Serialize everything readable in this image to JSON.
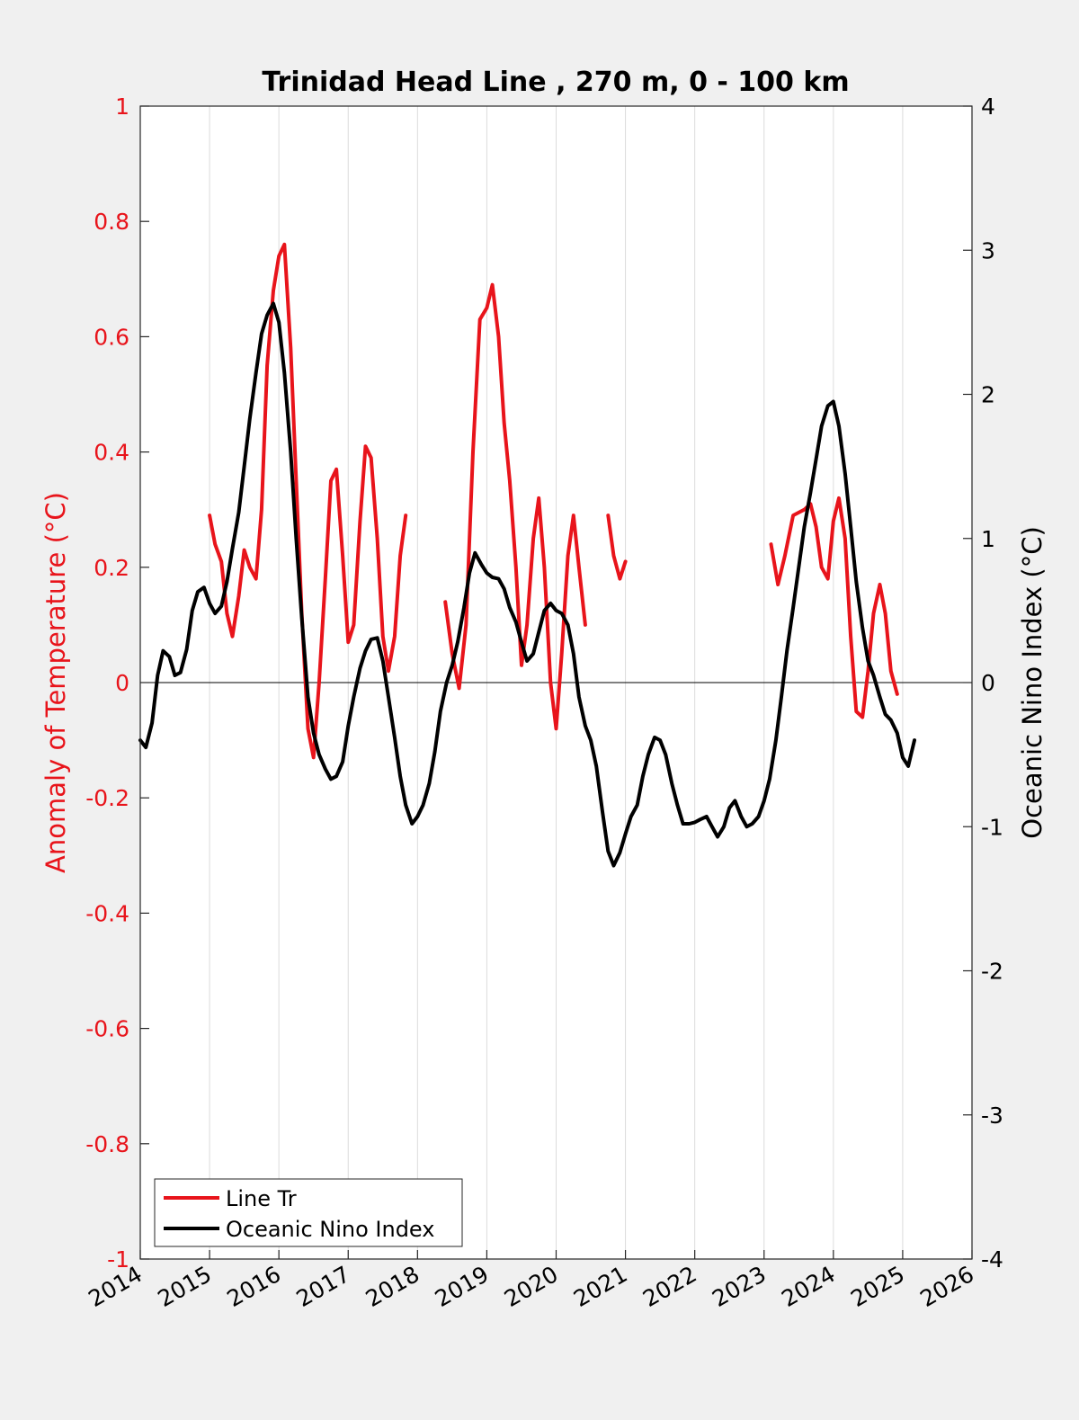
{
  "chart_data": {
    "type": "line",
    "title": "Trinidad Head Line , 270 m, 0 - 100 km",
    "xlabel": "",
    "ylabel_left": "Anomaly of Temperature (°C)",
    "ylabel_right": "Oceanic Nino Index (°C)",
    "xlim": [
      2014,
      2026
    ],
    "ylim_left": [
      -1,
      1
    ],
    "ylim_right": [
      -4,
      4
    ],
    "x_ticks": [
      "2014",
      "2015",
      "2016",
      "2017",
      "2018",
      "2019",
      "2020",
      "2021",
      "2022",
      "2023",
      "2024",
      "2025",
      "2026"
    ],
    "y_left_ticks": [
      "-1",
      "-0.8",
      "-0.6",
      "-0.4",
      "-0.2",
      "0",
      "0.2",
      "0.4",
      "0.6",
      "0.8",
      "1"
    ],
    "y_right_ticks": [
      "-4",
      "-3",
      "-2",
      "-1",
      "0",
      "1",
      "2",
      "3",
      "4"
    ],
    "grid_x": true,
    "legend_position": "bottom-left",
    "colors": {
      "left_axis": "#e8141b",
      "line_tr": "#e8141b",
      "oni": "#000000"
    },
    "series": [
      {
        "name": "Line Tr",
        "axis": "left",
        "segments": [
          [
            [
              2015.0,
              0.29
            ],
            [
              2015.08,
              0.24
            ],
            [
              2015.17,
              0.21
            ],
            [
              2015.25,
              0.12
            ],
            [
              2015.33,
              0.08
            ],
            [
              2015.42,
              0.15
            ],
            [
              2015.5,
              0.23
            ],
            [
              2015.58,
              0.2
            ],
            [
              2015.67,
              0.18
            ],
            [
              2015.75,
              0.3
            ],
            [
              2015.83,
              0.55
            ],
            [
              2015.92,
              0.68
            ],
            [
              2016.0,
              0.74
            ],
            [
              2016.08,
              0.76
            ],
            [
              2016.17,
              0.58
            ],
            [
              2016.25,
              0.35
            ],
            [
              2016.33,
              0.12
            ],
            [
              2016.42,
              -0.08
            ],
            [
              2016.5,
              -0.13
            ],
            [
              2016.58,
              0.0
            ],
            [
              2016.67,
              0.18
            ],
            [
              2016.75,
              0.35
            ],
            [
              2016.83,
              0.37
            ],
            [
              2016.92,
              0.22
            ],
            [
              2017.0,
              0.07
            ],
            [
              2017.08,
              0.1
            ],
            [
              2017.17,
              0.28
            ],
            [
              2017.25,
              0.41
            ],
            [
              2017.33,
              0.39
            ],
            [
              2017.42,
              0.25
            ],
            [
              2017.5,
              0.08
            ],
            [
              2017.58,
              0.02
            ],
            [
              2017.67,
              0.08
            ],
            [
              2017.75,
              0.22
            ],
            [
              2017.83,
              0.29
            ]
          ],
          [
            [
              2018.4,
              0.14
            ],
            [
              2018.5,
              0.05
            ],
            [
              2018.6,
              -0.01
            ],
            [
              2018.7,
              0.1
            ],
            [
              2018.8,
              0.4
            ],
            [
              2018.9,
              0.63
            ],
            [
              2019.0,
              0.65
            ],
            [
              2019.08,
              0.69
            ],
            [
              2019.17,
              0.6
            ],
            [
              2019.25,
              0.45
            ],
            [
              2019.33,
              0.35
            ],
            [
              2019.42,
              0.2
            ],
            [
              2019.5,
              0.03
            ],
            [
              2019.58,
              0.1
            ],
            [
              2019.67,
              0.25
            ],
            [
              2019.75,
              0.32
            ],
            [
              2019.83,
              0.2
            ],
            [
              2019.92,
              0.0
            ],
            [
              2020.0,
              -0.08
            ],
            [
              2020.08,
              0.05
            ],
            [
              2020.17,
              0.22
            ],
            [
              2020.25,
              0.29
            ],
            [
              2020.33,
              0.2
            ],
            [
              2020.42,
              0.1
            ]
          ],
          [
            [
              2020.75,
              0.29
            ],
            [
              2020.83,
              0.22
            ],
            [
              2020.92,
              0.18
            ],
            [
              2021.0,
              0.21
            ]
          ],
          [
            [
              2023.1,
              0.24
            ],
            [
              2023.2,
              0.17
            ],
            [
              2023.3,
              0.22
            ],
            [
              2023.42,
              0.29
            ],
            [
              2023.58,
              0.3
            ],
            [
              2023.67,
              0.31
            ],
            [
              2023.75,
              0.27
            ],
            [
              2023.83,
              0.2
            ],
            [
              2023.92,
              0.18
            ],
            [
              2024.0,
              0.28
            ],
            [
              2024.08,
              0.32
            ],
            [
              2024.17,
              0.25
            ],
            [
              2024.25,
              0.08
            ],
            [
              2024.33,
              -0.05
            ],
            [
              2024.42,
              -0.06
            ],
            [
              2024.5,
              0.02
            ],
            [
              2024.58,
              0.12
            ],
            [
              2024.67,
              0.17
            ],
            [
              2024.75,
              0.12
            ],
            [
              2024.83,
              0.02
            ],
            [
              2024.92,
              -0.02
            ]
          ]
        ]
      },
      {
        "name": "Oceanic Nino Index",
        "axis": "right",
        "points": [
          [
            2014.0,
            -0.4
          ],
          [
            2014.08,
            -0.45
          ],
          [
            2014.17,
            -0.28
          ],
          [
            2014.25,
            0.05
          ],
          [
            2014.33,
            0.22
          ],
          [
            2014.42,
            0.18
          ],
          [
            2014.5,
            0.05
          ],
          [
            2014.58,
            0.07
          ],
          [
            2014.67,
            0.23
          ],
          [
            2014.75,
            0.5
          ],
          [
            2014.83,
            0.63
          ],
          [
            2014.92,
            0.66
          ],
          [
            2015.0,
            0.55
          ],
          [
            2015.08,
            0.48
          ],
          [
            2015.17,
            0.53
          ],
          [
            2015.25,
            0.7
          ],
          [
            2015.33,
            0.93
          ],
          [
            2015.42,
            1.18
          ],
          [
            2015.5,
            1.5
          ],
          [
            2015.58,
            1.83
          ],
          [
            2015.67,
            2.15
          ],
          [
            2015.75,
            2.42
          ],
          [
            2015.83,
            2.55
          ],
          [
            2015.92,
            2.63
          ],
          [
            2016.0,
            2.5
          ],
          [
            2016.08,
            2.15
          ],
          [
            2016.17,
            1.6
          ],
          [
            2016.25,
            1.0
          ],
          [
            2016.33,
            0.45
          ],
          [
            2016.42,
            -0.1
          ],
          [
            2016.5,
            -0.35
          ],
          [
            2016.58,
            -0.5
          ],
          [
            2016.67,
            -0.6
          ],
          [
            2016.75,
            -0.67
          ],
          [
            2016.83,
            -0.65
          ],
          [
            2016.92,
            -0.55
          ],
          [
            2017.0,
            -0.3
          ],
          [
            2017.08,
            -0.1
          ],
          [
            2017.17,
            0.1
          ],
          [
            2017.25,
            0.22
          ],
          [
            2017.33,
            0.3
          ],
          [
            2017.42,
            0.31
          ],
          [
            2017.5,
            0.15
          ],
          [
            2017.58,
            -0.1
          ],
          [
            2017.67,
            -0.38
          ],
          [
            2017.75,
            -0.65
          ],
          [
            2017.83,
            -0.85
          ],
          [
            2017.92,
            -0.98
          ],
          [
            2018.0,
            -0.93
          ],
          [
            2018.08,
            -0.85
          ],
          [
            2018.17,
            -0.7
          ],
          [
            2018.25,
            -0.48
          ],
          [
            2018.33,
            -0.2
          ],
          [
            2018.42,
            0.0
          ],
          [
            2018.5,
            0.12
          ],
          [
            2018.58,
            0.28
          ],
          [
            2018.67,
            0.52
          ],
          [
            2018.75,
            0.76
          ],
          [
            2018.83,
            0.9
          ],
          [
            2018.92,
            0.82
          ],
          [
            2019.0,
            0.76
          ],
          [
            2019.08,
            0.73
          ],
          [
            2019.17,
            0.72
          ],
          [
            2019.25,
            0.65
          ],
          [
            2019.33,
            0.52
          ],
          [
            2019.42,
            0.42
          ],
          [
            2019.5,
            0.28
          ],
          [
            2019.58,
            0.15
          ],
          [
            2019.67,
            0.2
          ],
          [
            2019.75,
            0.35
          ],
          [
            2019.83,
            0.5
          ],
          [
            2019.92,
            0.55
          ],
          [
            2020.0,
            0.5
          ],
          [
            2020.08,
            0.48
          ],
          [
            2020.17,
            0.4
          ],
          [
            2020.25,
            0.2
          ],
          [
            2020.33,
            -0.1
          ],
          [
            2020.42,
            -0.3
          ],
          [
            2020.5,
            -0.4
          ],
          [
            2020.58,
            -0.58
          ],
          [
            2020.67,
            -0.9
          ],
          [
            2020.75,
            -1.17
          ],
          [
            2020.83,
            -1.27
          ],
          [
            2020.92,
            -1.18
          ],
          [
            2021.0,
            -1.05
          ],
          [
            2021.08,
            -0.93
          ],
          [
            2021.17,
            -0.85
          ],
          [
            2021.25,
            -0.65
          ],
          [
            2021.33,
            -0.5
          ],
          [
            2021.42,
            -0.38
          ],
          [
            2021.5,
            -0.4
          ],
          [
            2021.58,
            -0.5
          ],
          [
            2021.67,
            -0.7
          ],
          [
            2021.75,
            -0.85
          ],
          [
            2021.83,
            -0.98
          ],
          [
            2021.92,
            -0.98
          ],
          [
            2022.0,
            -0.97
          ],
          [
            2022.08,
            -0.95
          ],
          [
            2022.17,
            -0.93
          ],
          [
            2022.25,
            -1.0
          ],
          [
            2022.33,
            -1.07
          ],
          [
            2022.42,
            -1.0
          ],
          [
            2022.5,
            -0.87
          ],
          [
            2022.58,
            -0.82
          ],
          [
            2022.67,
            -0.93
          ],
          [
            2022.75,
            -1.0
          ],
          [
            2022.83,
            -0.98
          ],
          [
            2022.92,
            -0.93
          ],
          [
            2023.0,
            -0.82
          ],
          [
            2023.08,
            -0.67
          ],
          [
            2023.17,
            -0.4
          ],
          [
            2023.25,
            -0.1
          ],
          [
            2023.33,
            0.22
          ],
          [
            2023.42,
            0.52
          ],
          [
            2023.5,
            0.8
          ],
          [
            2023.58,
            1.08
          ],
          [
            2023.67,
            1.32
          ],
          [
            2023.75,
            1.55
          ],
          [
            2023.83,
            1.78
          ],
          [
            2023.92,
            1.92
          ],
          [
            2024.0,
            1.95
          ],
          [
            2024.08,
            1.78
          ],
          [
            2024.17,
            1.45
          ],
          [
            2024.25,
            1.08
          ],
          [
            2024.33,
            0.7
          ],
          [
            2024.42,
            0.38
          ],
          [
            2024.5,
            0.15
          ],
          [
            2024.58,
            0.05
          ],
          [
            2024.67,
            -0.1
          ],
          [
            2024.75,
            -0.22
          ],
          [
            2024.83,
            -0.26
          ],
          [
            2024.92,
            -0.35
          ],
          [
            2025.0,
            -0.52
          ],
          [
            2025.08,
            -0.58
          ],
          [
            2025.17,
            -0.4
          ]
        ]
      }
    ]
  }
}
